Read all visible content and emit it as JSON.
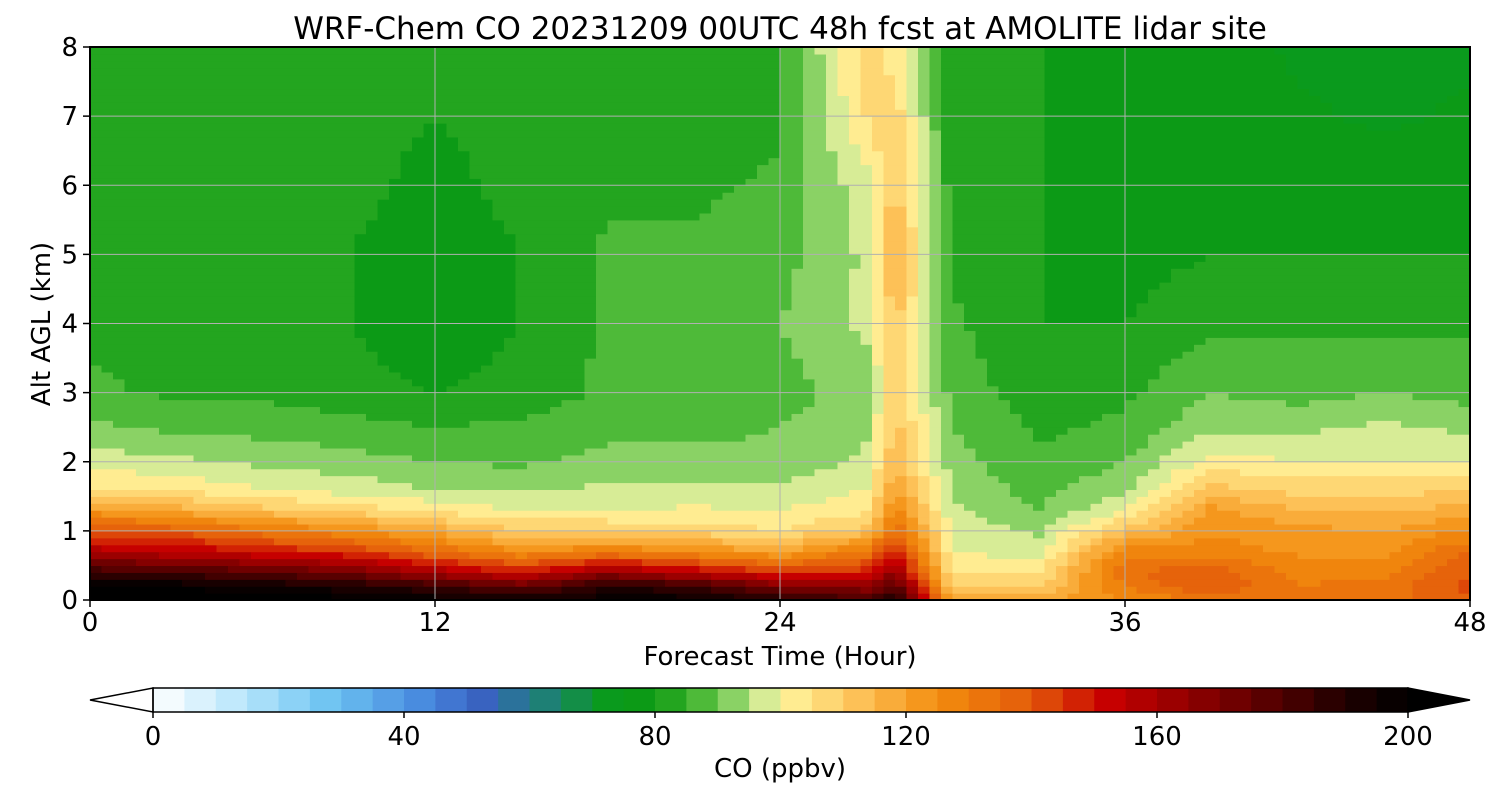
{
  "chart_data": {
    "type": "heatmap",
    "title": "WRF-Chem CO  20231209 00UTC 48h fcst at AMOLITE lidar site",
    "xlabel": "Forecast Time (Hour)",
    "ylabel": "Alt AGL (km)",
    "xlim": [
      0,
      48
    ],
    "ylim": [
      0,
      8
    ],
    "x_ticks": [
      "0",
      "12",
      "24",
      "36",
      "48"
    ],
    "y_ticks": [
      "0",
      "1",
      "2",
      "3",
      "4",
      "5",
      "6",
      "7",
      "8"
    ],
    "grid": true,
    "colorbar": {
      "label": "CO  (ppbv)",
      "range": [
        0,
        200
      ],
      "ticks": [
        "0",
        "40",
        "80",
        "120",
        "160",
        "200"
      ],
      "extend": "both",
      "color_stops": [
        {
          "value": 0,
          "color": "#ffffff"
        },
        {
          "value": 15,
          "color": "#b5e4fb"
        },
        {
          "value": 28,
          "color": "#6ec4f2"
        },
        {
          "value": 42,
          "color": "#4a8ee0"
        },
        {
          "value": 52,
          "color": "#3a62c4"
        },
        {
          "value": 62,
          "color": "#1f7f7a"
        },
        {
          "value": 72,
          "color": "#0a9a1e"
        },
        {
          "value": 80,
          "color": "#0d9a12"
        },
        {
          "value": 90,
          "color": "#64c446"
        },
        {
          "value": 96,
          "color": "#bfe590"
        },
        {
          "value": 100,
          "color": "#fff7a0"
        },
        {
          "value": 112,
          "color": "#fdc35a"
        },
        {
          "value": 125,
          "color": "#f38d0e"
        },
        {
          "value": 140,
          "color": "#e35a0a"
        },
        {
          "value": 152,
          "color": "#c80000"
        },
        {
          "value": 170,
          "color": "#7a0000"
        },
        {
          "value": 190,
          "color": "#200000"
        },
        {
          "value": 200,
          "color": "#000000"
        }
      ]
    },
    "grid_x_hours": [
      0,
      3,
      6,
      9,
      12,
      15,
      18,
      21,
      24,
      27,
      28,
      30,
      33,
      36,
      39,
      42,
      45,
      48
    ],
    "grid_y_km": [
      0,
      0.2,
      0.4,
      0.7,
      1.0,
      1.3,
      1.6,
      2.0,
      2.5,
      3.0,
      4.0,
      5.0,
      6.0,
      7.0,
      8.0
    ],
    "co_ppbv_columns": [
      [
        205,
        200,
        185,
        158,
        142,
        122,
        106,
        98,
        91,
        86,
        84,
        84,
        84,
        84,
        83
      ],
      [
        205,
        200,
        182,
        155,
        138,
        118,
        104,
        96,
        89,
        84,
        82,
        82,
        83,
        84,
        84
      ],
      [
        205,
        195,
        178,
        150,
        132,
        112,
        100,
        94,
        88,
        84,
        82,
        80,
        82,
        82,
        83
      ],
      [
        202,
        192,
        172,
        145,
        125,
        108,
        98,
        92,
        87,
        82,
        80,
        80,
        82,
        82,
        82
      ],
      [
        198,
        185,
        160,
        135,
        118,
        104,
        95,
        90,
        85,
        80,
        76,
        76,
        78,
        80,
        80
      ],
      [
        195,
        175,
        150,
        125,
        110,
        100,
        94,
        89,
        86,
        82,
        80,
        80,
        82,
        82,
        82
      ],
      [
        198,
        190,
        165,
        130,
        110,
        100,
        96,
        92,
        88,
        86,
        86,
        86,
        84,
        82,
        82
      ],
      [
        198,
        185,
        155,
        125,
        108,
        101,
        96,
        92,
        88,
        87,
        88,
        86,
        84,
        80,
        80
      ],
      [
        190,
        170,
        145,
        120,
        105,
        100,
        96,
        92,
        90,
        88,
        90,
        88,
        86,
        84,
        84
      ],
      [
        182,
        165,
        148,
        132,
        112,
        104,
        100,
        96,
        94,
        92,
        96,
        96,
        98,
        105,
        108
      ],
      [
        190,
        180,
        165,
        150,
        135,
        128,
        120,
        115,
        112,
        108,
        112,
        116,
        112,
        108,
        102
      ],
      [
        120,
        108,
        104,
        100,
        98,
        96,
        94,
        92,
        90,
        88,
        86,
        84,
        82,
        82,
        82
      ],
      [
        118,
        110,
        104,
        98,
        94,
        90,
        88,
        86,
        84,
        82,
        80,
        80,
        80,
        80,
        80
      ],
      [
        125,
        130,
        135,
        128,
        112,
        100,
        94,
        90,
        86,
        84,
        80,
        78,
        78,
        78,
        78
      ],
      [
        130,
        140,
        138,
        128,
        124,
        122,
        112,
        102,
        94,
        90,
        84,
        80,
        78,
        78,
        78
      ],
      [
        130,
        130,
        128,
        124,
        122,
        115,
        108,
        100,
        94,
        88,
        84,
        80,
        78,
        76,
        74
      ],
      [
        132,
        132,
        128,
        124,
        120,
        114,
        108,
        100,
        96,
        90,
        84,
        80,
        78,
        74,
        72
      ],
      [
        140,
        142,
        140,
        135,
        126,
        118,
        110,
        100,
        94,
        88,
        84,
        80,
        78,
        76,
        74
      ]
    ]
  }
}
